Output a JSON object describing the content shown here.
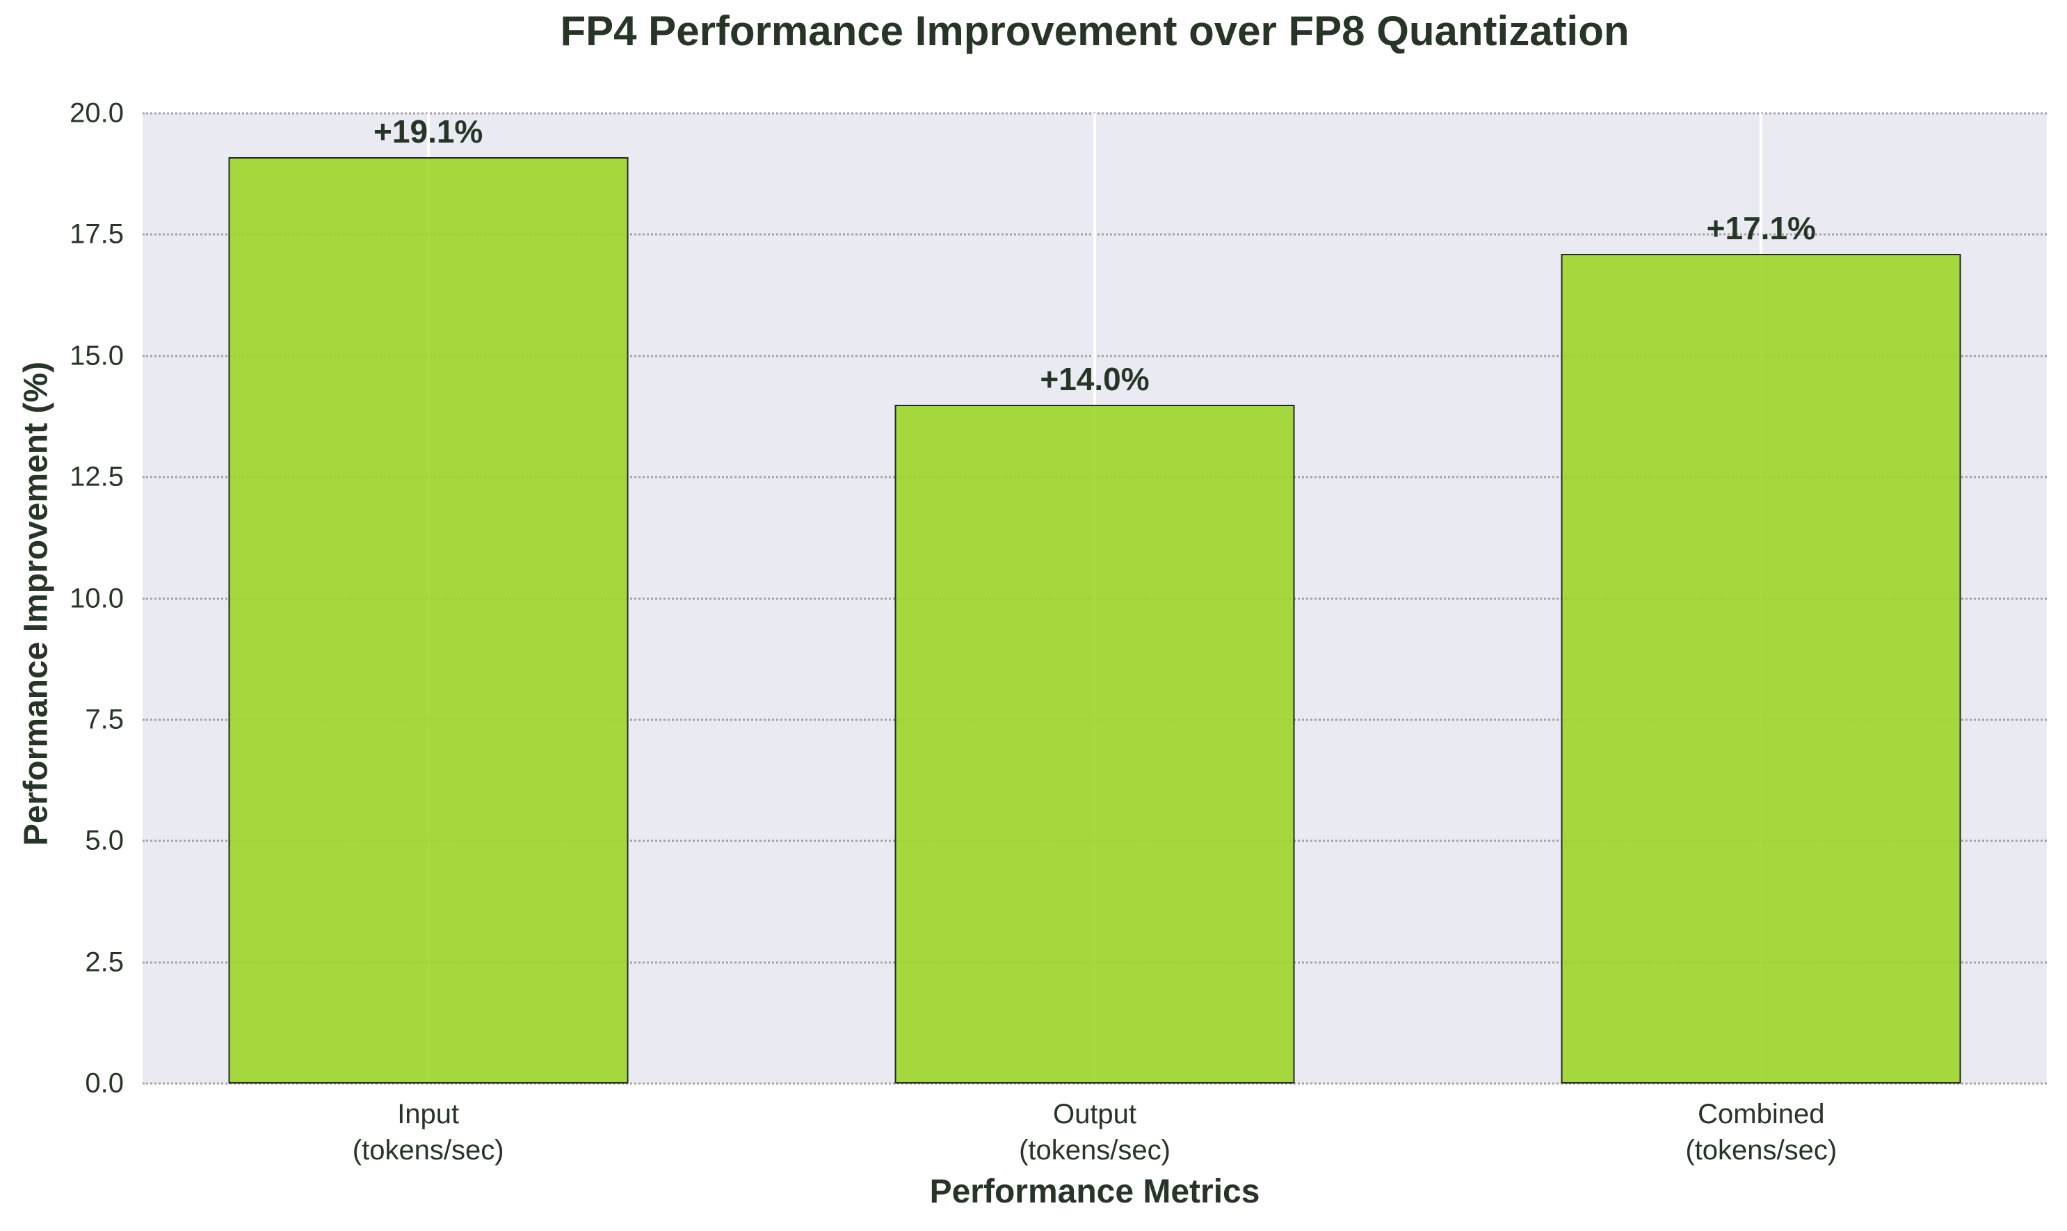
{
  "chart_data": {
    "type": "bar",
    "title": "FP4 Performance Improvement over FP8 Quantization",
    "xlabel": "Performance Metrics",
    "ylabel": "Performance Improvement (%)",
    "categories": [
      "Input\n(tokens/sec)",
      "Output\n(tokens/sec)",
      "Combined\n(tokens/sec)"
    ],
    "category_keys": [
      "input",
      "output",
      "combined"
    ],
    "values": [
      19.1,
      14.0,
      17.1
    ],
    "bar_labels": [
      "+19.1%",
      "+14.0%",
      "+17.1%"
    ],
    "ylim": [
      0,
      20
    ],
    "yticks": [
      0.0,
      2.5,
      5.0,
      7.5,
      10.0,
      12.5,
      15.0,
      17.5,
      20.0
    ],
    "ytick_labels": [
      "0.0",
      "2.5",
      "5.0",
      "7.5",
      "10.0",
      "12.5",
      "15.0",
      "17.5",
      "20.0"
    ],
    "grid": "horizontal dotted gray + vertical solid white at bar centers, gridlines visible through semi-transparent bars",
    "legend": "none"
  },
  "colors": {
    "figure_background": "#ffffff",
    "plot_background": "#eaeaf2",
    "bar_fill": "#9dd628",
    "bar_fill_alpha": 0.9,
    "bar_edge": "#262626",
    "grid_dotted": "#a3a3a3",
    "grid_vertical": "#ffffff",
    "text": "#273527"
  }
}
